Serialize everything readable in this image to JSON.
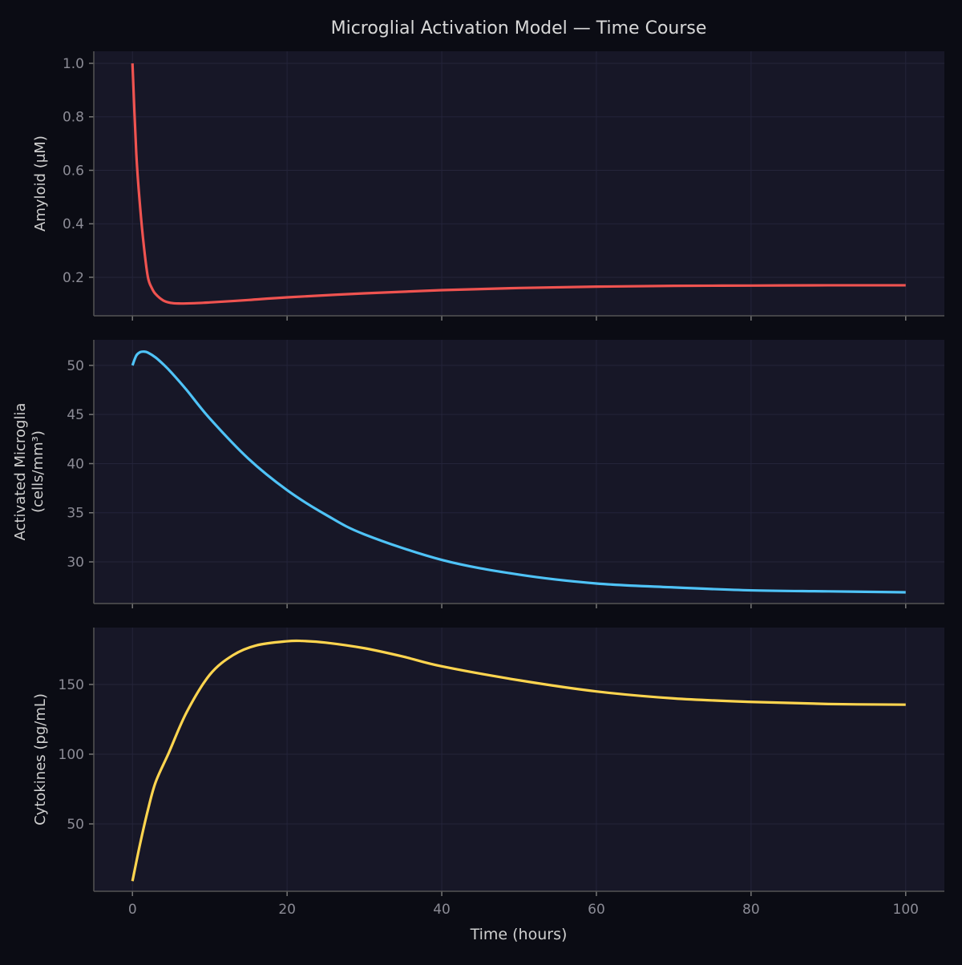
{
  "chart_data": [
    {
      "type": "line",
      "title": "Microglial Activation Model — Time Course",
      "ylabel": "Amyloid (μM)",
      "xlim": [
        -5,
        105
      ],
      "ylim": [
        0.056,
        1.045
      ],
      "xticks": [
        0,
        20,
        40,
        60,
        80,
        100
      ],
      "yticks": [
        0.2,
        0.4,
        0.6,
        0.8,
        1.0
      ],
      "ytick_labels": [
        "0.2",
        "0.4",
        "0.6",
        "0.8",
        "1.0"
      ],
      "grid": true,
      "color": "#ef5350",
      "x": [
        0,
        0.5,
        1,
        1.5,
        2,
        2.5,
        3,
        4,
        5,
        6,
        8,
        10,
        15,
        20,
        30,
        40,
        50,
        60,
        70,
        80,
        90,
        100
      ],
      "y": [
        1.0,
        0.66,
        0.46,
        0.31,
        0.2,
        0.16,
        0.137,
        0.113,
        0.104,
        0.102,
        0.103,
        0.106,
        0.115,
        0.125,
        0.14,
        0.152,
        0.16,
        0.165,
        0.168,
        0.169,
        0.17,
        0.17
      ]
    },
    {
      "type": "line",
      "ylabel": "Activated Microglia\n(cells/mm³)",
      "ylabel_lines": [
        "Activated Microglia",
        "(cells/mm³)"
      ],
      "xlim": [
        -5,
        105
      ],
      "ylim": [
        25.76,
        52.6
      ],
      "xticks": [
        0,
        20,
        40,
        60,
        80,
        100
      ],
      "yticks": [
        30,
        35,
        40,
        45,
        50
      ],
      "ytick_labels": [
        "30",
        "35",
        "40",
        "45",
        "50"
      ],
      "grid": true,
      "color": "#4fc3f7",
      "x": [
        0,
        0.5,
        1,
        1.5,
        2,
        3,
        4,
        5,
        7,
        10,
        15,
        20,
        25,
        30,
        40,
        50,
        60,
        70,
        80,
        90,
        100
      ],
      "y": [
        50.0,
        51.0,
        51.35,
        51.4,
        51.3,
        50.8,
        50.1,
        49.3,
        47.5,
        44.6,
        40.5,
        37.3,
        34.8,
        32.8,
        30.2,
        28.7,
        27.8,
        27.4,
        27.1,
        27.0,
        26.9
      ]
    },
    {
      "type": "line",
      "xlabel": "Time (hours)",
      "ylabel": "Cytokines (pg/mL)",
      "xlim": [
        -5,
        105
      ],
      "ylim": [
        1.7,
        190.8
      ],
      "xticks": [
        0,
        20,
        40,
        60,
        80,
        100
      ],
      "xtick_labels": [
        "0",
        "20",
        "40",
        "60",
        "80",
        "100"
      ],
      "yticks": [
        50,
        100,
        150
      ],
      "ytick_labels": [
        "50",
        "100",
        "150"
      ],
      "grid": true,
      "color": "#ffd54f",
      "x": [
        0,
        1,
        2,
        3,
        4.7,
        7,
        10,
        13,
        16,
        20,
        22,
        25,
        30,
        35,
        40,
        50,
        60,
        70,
        80,
        90,
        100
      ],
      "y": [
        9,
        36,
        60,
        80,
        101,
        130,
        157,
        171,
        178,
        181,
        181.2,
        180,
        176,
        170,
        163,
        153,
        145,
        140,
        137.5,
        136,
        135.5
      ]
    }
  ]
}
